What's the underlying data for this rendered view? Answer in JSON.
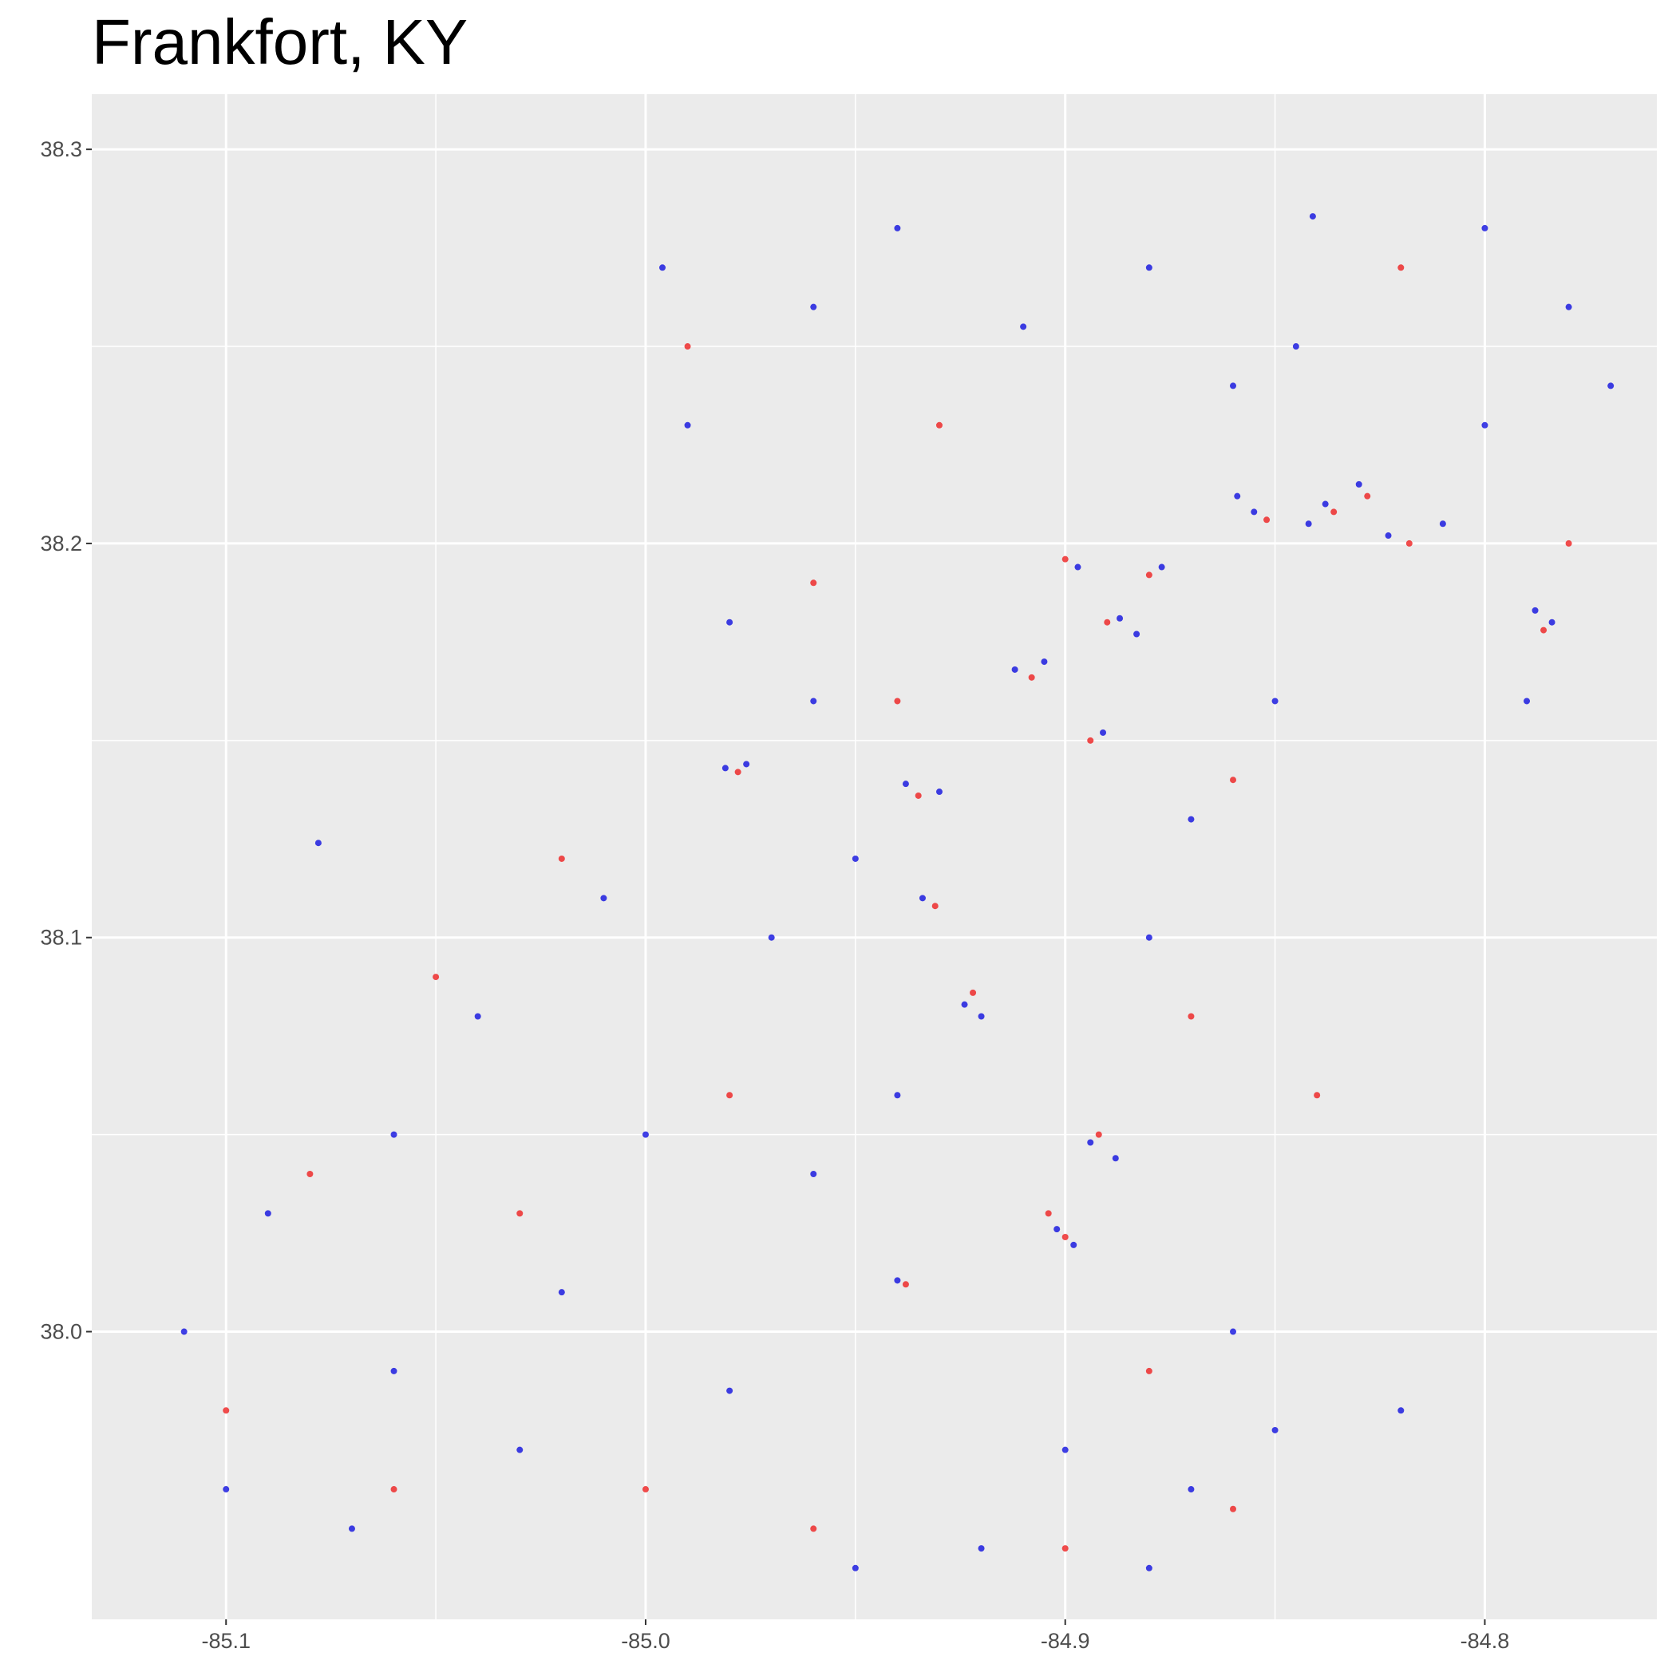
{
  "chart_data": {
    "type": "scatter",
    "title": "Frankfort, KY",
    "xlim": [
      -85.132,
      -84.759
    ],
    "ylim": [
      37.927,
      38.314
    ],
    "xticks": [
      -85.1,
      {
        "value": -85,
        "label": "-85.0"
      },
      -84.9,
      -84.8
    ],
    "yticks": [
      {
        "value": 38,
        "label": "38.0"
      },
      38.1,
      38.2,
      38.3
    ],
    "grid": true,
    "series": [
      {
        "color": "#0000dd",
        "x": [
          -84.838,
          -84.842,
          -84.83,
          -84.859,
          -84.855,
          -84.823,
          -84.81,
          -84.788,
          -84.784,
          -84.887,
          -84.883,
          -84.912,
          -84.905,
          -84.891,
          -84.877,
          -84.897,
          -84.981,
          -84.976,
          -84.938,
          -84.93,
          -84.934,
          -84.924,
          -84.92,
          -84.894,
          -84.888,
          -84.902,
          -84.898,
          -84.94,
          -84.841,
          -84.845,
          -84.86,
          -84.996,
          -84.99,
          -84.98,
          -84.96,
          -84.95,
          -84.97,
          -85.01,
          -85.04,
          -85.06,
          -85.09,
          -85.11,
          -85.1,
          -85.07,
          -85.03,
          -84.98,
          -84.95,
          -84.9,
          -84.87,
          -84.85,
          -84.92,
          -84.88,
          -84.82,
          -84.94,
          -84.96,
          -84.91,
          -84.88,
          -84.8,
          -84.78,
          -84.77,
          -84.8,
          -84.85,
          -84.87,
          -85.02,
          -85.06,
          -85.0,
          -84.96,
          -84.94,
          -84.88,
          -84.86,
          -84.79,
          -85.078
        ],
        "values": [
          38.21,
          38.205,
          38.215,
          38.212,
          38.208,
          38.202,
          38.205,
          38.183,
          38.18,
          38.181,
          38.177,
          38.168,
          38.17,
          38.152,
          38.194,
          38.194,
          38.143,
          38.144,
          38.139,
          38.137,
          38.11,
          38.083,
          38.08,
          38.048,
          38.044,
          38.026,
          38.022,
          38.013,
          38.283,
          38.25,
          38.24,
          38.27,
          38.23,
          38.18,
          38.16,
          38.12,
          38.1,
          38.11,
          38.08,
          38.05,
          38.03,
          38.0,
          37.96,
          37.95,
          37.97,
          37.985,
          37.94,
          37.97,
          37.96,
          37.975,
          37.945,
          37.94,
          37.98,
          38.28,
          38.26,
          38.255,
          38.27,
          38.28,
          38.26,
          38.24,
          38.23,
          38.16,
          38.13,
          38.01,
          37.99,
          38.05,
          38.04,
          38.06,
          38.1,
          38.0,
          38.16,
          38.124
        ]
      },
      {
        "color": "#ee1111",
        "x": [
          -84.836,
          -84.828,
          -84.852,
          -84.818,
          -84.786,
          -84.89,
          -84.908,
          -84.894,
          -84.88,
          -84.9,
          -84.978,
          -84.935,
          -84.931,
          -84.922,
          -84.892,
          -84.9,
          -84.904,
          -84.938,
          -84.99,
          -84.93,
          -85.05,
          -85.08,
          -85.1,
          -85.0,
          -84.96,
          -84.9,
          -84.86,
          -84.88,
          -84.84,
          -84.87,
          -84.96,
          -84.94,
          -85.02,
          -84.82,
          -84.78,
          -85.06,
          -85.03,
          -84.98,
          -84.86
        ],
        "values": [
          38.208,
          38.212,
          38.206,
          38.2,
          38.178,
          38.18,
          38.166,
          38.15,
          38.192,
          38.196,
          38.142,
          38.136,
          38.108,
          38.086,
          38.05,
          38.024,
          38.03,
          38.012,
          38.25,
          38.23,
          38.09,
          38.04,
          37.98,
          37.96,
          37.95,
          37.945,
          37.955,
          37.99,
          38.06,
          38.08,
          38.19,
          38.16,
          38.12,
          38.27,
          38.2,
          37.96,
          38.03,
          38.06,
          38.14
        ]
      }
    ]
  }
}
